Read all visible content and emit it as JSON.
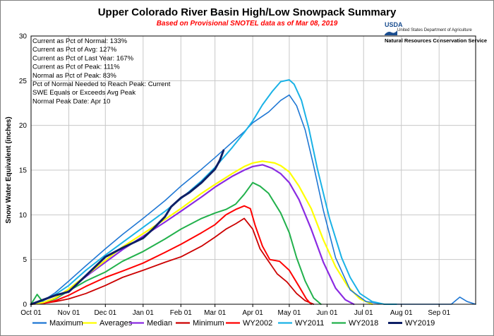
{
  "header": {
    "title": "Upper Colorado River Basin High/Low Snowpack Summary",
    "subtitle": "Based on Provisional SNOTEL data as of Mar 08, 2019",
    "logo_usda": "USDA",
    "logo_dept": "United States Department of Agriculture",
    "logo_nrcs": "Natural Resources Conservation Service"
  },
  "stats": [
    "Current  as Pct of Normal: 133%",
    "Current  as Pct of Avg: 127%",
    "Current  as Pct of Last Year: 167%",
    "Current  as Pct of Peak: 111%",
    "Normal  as Pct of Peak: 83%",
    "Pct of Normal Needed  to Reach Peak: Current",
    "SWE Equals or Exceeds Avg Peak",
    "Normal  Peak Date: Apr 10"
  ],
  "colors": {
    "Maximum": "#1f77d4",
    "Averages": "#ffff00",
    "Median": "#8a2be2",
    "Minimum": "#cc0000",
    "WY2002": "#ff0000",
    "WY2011": "#1ab2e6",
    "WY2018": "#22b14c",
    "WY2019": "#0d1f66"
  },
  "chart_data": {
    "type": "line",
    "title": "Upper Colorado River Basin High/Low Snowpack Summary",
    "ylabel": "Snow Water Equivalent (inches)",
    "xlabel": "",
    "ylim": [
      0,
      30
    ],
    "yticks": [
      0,
      5,
      10,
      15,
      20,
      25,
      30
    ],
    "x_tick_labels": [
      "Oct 01",
      "Nov 01",
      "Dec 01",
      "Jan 01",
      "Feb 01",
      "Mar 01",
      "Apr 01",
      "May 01",
      "Jun 01",
      "Jul 01",
      "Aug 01",
      "Sep 01"
    ],
    "x_tick_days": [
      0,
      31,
      61,
      92,
      123,
      151,
      182,
      212,
      243,
      273,
      304,
      335
    ],
    "x_range_days": [
      0,
      365
    ],
    "grid": true,
    "legend_position": "bottom",
    "series": [
      {
        "name": "Maximum",
        "days": [
          0,
          10,
          20,
          31,
          45,
          61,
          75,
          92,
          110,
          123,
          140,
          151,
          165,
          175,
          182,
          195,
          205,
          212,
          218,
          225,
          232,
          240,
          250,
          262,
          275,
          290,
          300,
          320,
          335,
          345,
          352,
          358,
          365
        ],
        "values": [
          0,
          0.4,
          1.3,
          2.6,
          4.3,
          6.2,
          7.8,
          9.6,
          11.6,
          13.2,
          15.1,
          16.4,
          18.1,
          19.3,
          20.3,
          21.5,
          22.8,
          23.4,
          22.2,
          19.5,
          15.5,
          10.5,
          5.2,
          1.6,
          0.3,
          0,
          0,
          0,
          0,
          0,
          0.8,
          0.3,
          0
        ]
      },
      {
        "name": "Averages",
        "days": [
          0,
          10,
          20,
          31,
          45,
          61,
          75,
          92,
          110,
          123,
          140,
          151,
          165,
          175,
          182,
          190,
          200,
          205,
          212,
          220,
          230,
          240,
          250,
          260,
          270,
          280
        ],
        "values": [
          0,
          0.2,
          0.7,
          1.7,
          3.2,
          4.9,
          6.4,
          7.9,
          9.5,
          10.7,
          12.4,
          13.4,
          14.6,
          15.4,
          15.8,
          16,
          15.8,
          15.5,
          14.8,
          13.2,
          10.7,
          7.2,
          4.2,
          2,
          0.6,
          0
        ]
      },
      {
        "name": "Median",
        "days": [
          0,
          10,
          20,
          31,
          45,
          61,
          75,
          92,
          110,
          123,
          140,
          151,
          165,
          175,
          182,
          190,
          198,
          205,
          212,
          220,
          230,
          240,
          250,
          258,
          265
        ],
        "values": [
          0,
          0.2,
          0.7,
          1.6,
          3.1,
          4.7,
          6.1,
          7.6,
          9.2,
          10.4,
          12,
          13.1,
          14.3,
          15,
          15.4,
          15.6,
          15.2,
          14.6,
          13.6,
          11.7,
          8.4,
          4.7,
          1.8,
          0.5,
          0
        ]
      },
      {
        "name": "Minimum",
        "days": [
          0,
          10,
          20,
          31,
          45,
          61,
          75,
          92,
          110,
          123,
          140,
          151,
          160,
          168,
          175,
          182,
          188,
          195,
          202,
          210,
          218,
          225,
          232
        ],
        "values": [
          0,
          0.1,
          0.3,
          0.6,
          1.2,
          2.1,
          3,
          3.8,
          4.7,
          5.3,
          6.5,
          7.5,
          8.4,
          9,
          9.6,
          8.4,
          6.2,
          4.8,
          3.4,
          2.5,
          1.2,
          0.4,
          0
        ]
      },
      {
        "name": "WY2002",
        "days": [
          0,
          10,
          20,
          31,
          45,
          61,
          75,
          92,
          110,
          123,
          140,
          151,
          160,
          168,
          175,
          180,
          184,
          190,
          196,
          204,
          212,
          220,
          226,
          230
        ],
        "values": [
          0,
          0.1,
          0.4,
          1,
          2,
          3,
          3.7,
          4.6,
          5.8,
          6.7,
          8,
          8.9,
          10,
          10.6,
          11,
          10.7,
          8.8,
          6.5,
          5,
          4.8,
          3.8,
          2,
          0.6,
          0
        ]
      },
      {
        "name": "WY2011",
        "days": [
          0,
          10,
          20,
          31,
          45,
          61,
          75,
          92,
          110,
          123,
          140,
          151,
          165,
          175,
          182,
          190,
          198,
          205,
          212,
          216,
          222,
          228,
          235,
          245,
          255,
          262,
          270,
          280,
          290,
          300
        ],
        "values": [
          0,
          0.4,
          1.1,
          2.1,
          3.8,
          5.5,
          6.9,
          8.6,
          10.4,
          11.8,
          13.8,
          15.3,
          17.5,
          19.2,
          20.5,
          22.3,
          23.8,
          24.9,
          25.1,
          24.6,
          22.8,
          19.7,
          15.2,
          9.6,
          5.2,
          3,
          1.2,
          0.3,
          0,
          0
        ]
      },
      {
        "name": "WY2018",
        "days": [
          0,
          5,
          10,
          20,
          31,
          45,
          61,
          75,
          92,
          110,
          123,
          140,
          151,
          160,
          168,
          175,
          182,
          188,
          195,
          205,
          212,
          218,
          225,
          232,
          238
        ],
        "values": [
          0,
          1.1,
          0.2,
          0.6,
          1.5,
          2.6,
          3.6,
          4.8,
          5.9,
          7.3,
          8.4,
          9.6,
          10.2,
          10.6,
          11.2,
          12.3,
          13.6,
          13.2,
          12.4,
          10.2,
          8,
          5.2,
          2.6,
          0.7,
          0
        ]
      },
      {
        "name": "WY2019",
        "days": [
          0,
          10,
          20,
          31,
          45,
          61,
          75,
          92,
          100,
          110,
          115,
          123,
          130,
          140,
          145,
          151,
          155,
          158
        ],
        "values": [
          0,
          0.5,
          1,
          1.4,
          3.2,
          5.3,
          6.3,
          7.4,
          8.4,
          9.8,
          10.9,
          11.9,
          12.5,
          13.6,
          14.3,
          15.1,
          16.1,
          17.2
        ]
      }
    ]
  }
}
